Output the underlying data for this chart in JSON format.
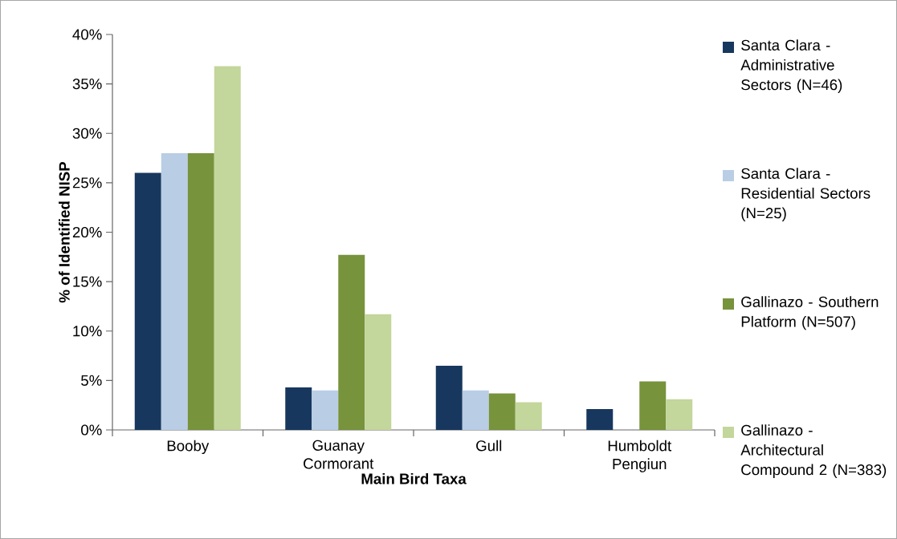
{
  "chart_data": {
    "type": "bar",
    "xlabel": "Main Bird Taxa",
    "ylabel": "% of Identified NISP",
    "categories": [
      "Booby",
      "Guanay Cormorant",
      "Gull",
      "Humboldt Pengiun"
    ],
    "series": [
      {
        "name": "Santa Clara - Administrative Sectors (N=46)",
        "color": "#17375e",
        "values": [
          26.0,
          4.3,
          6.5,
          2.1
        ]
      },
      {
        "name": "Santa Clara - Residential Sectors (N=25)",
        "color": "#b9cde5",
        "values": [
          28.0,
          4.0,
          4.0,
          0
        ]
      },
      {
        "name": "Gallinazo - Southern Platform (N=507)",
        "color": "#77933c",
        "values": [
          28.0,
          17.7,
          3.7,
          4.9
        ]
      },
      {
        "name": "Gallinazo - Architectural Compound 2 (N=383)",
        "color": "#c3d69b",
        "values": [
          36.8,
          11.7,
          2.8,
          3.1
        ]
      }
    ],
    "ylim": [
      0,
      40
    ],
    "yticks": [
      {
        "value": 0,
        "label": "0%"
      },
      {
        "value": 5,
        "label": "5%"
      },
      {
        "value": 10,
        "label": "10%"
      },
      {
        "value": 15,
        "label": "15%"
      },
      {
        "value": 20,
        "label": "20%"
      },
      {
        "value": 25,
        "label": "25%"
      },
      {
        "value": 30,
        "label": "30%"
      },
      {
        "value": 35,
        "label": "35%"
      },
      {
        "value": 40,
        "label": "40%"
      }
    ],
    "legend": "right"
  }
}
